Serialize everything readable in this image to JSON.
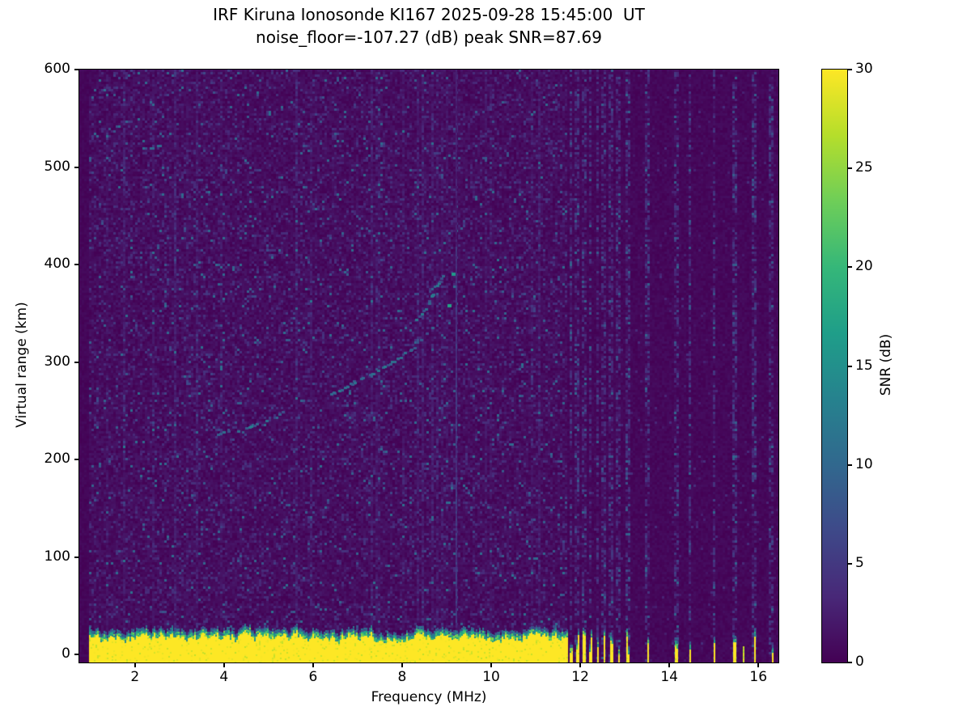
{
  "figure": {
    "background_color": "#ffffff",
    "axis_color": "#000000"
  },
  "chart_data": {
    "type": "heatmap",
    "title": "IRF Kiruna Ionosonde KI167 2025-09-28 15:45:00  UT",
    "subtitle": "noise_floor=-107.27 (dB) peak SNR=87.69",
    "xlabel": "Frequency (MHz)",
    "ylabel": "Virtual range (km)",
    "xlim": [
      0.75,
      16.45
    ],
    "ylim": [
      -8,
      600
    ],
    "xticks": [
      2,
      4,
      6,
      8,
      10,
      12,
      14,
      16
    ],
    "yticks": [
      0,
      100,
      200,
      300,
      400,
      500,
      600
    ],
    "grid": false,
    "colorbar": {
      "label": "SNR (dB)",
      "min": 0,
      "max": 30,
      "ticks": [
        0,
        5,
        10,
        15,
        20,
        25,
        30
      ],
      "colormap": "viridis",
      "position": "right"
    },
    "colormap_stops": [
      "#440154",
      "#482878",
      "#3e4989",
      "#31688e",
      "#26828e",
      "#1f9e89",
      "#35b779",
      "#6ece58",
      "#b5de2b",
      "#fde725"
    ],
    "features": {
      "noise_floor_db": -107.27,
      "peak_snr_db": 87.69,
      "ground_clutter_band": {
        "y_from_km": -8,
        "y_top_km_range": [
          14,
          36
        ],
        "x_from_mhz": 0.95,
        "x_to_mhz": 11.68,
        "snr_db": 30
      },
      "echo_traces": [
        {
          "name": "lower-oblique-trace",
          "points_mhz_km": [
            [
              3.85,
              227
            ],
            [
              4.2,
              230
            ],
            [
              4.6,
              235
            ],
            [
              5.0,
              242
            ],
            [
              5.3,
              249
            ]
          ]
        },
        {
          "name": "f-layer-trace",
          "points_mhz_km": [
            [
              6.4,
              268
            ],
            [
              6.9,
              280
            ],
            [
              7.4,
              291
            ],
            [
              7.8,
              302
            ],
            [
              8.15,
              313
            ],
            [
              8.45,
              325
            ],
            [
              8.7,
              338
            ]
          ]
        },
        {
          "name": "f-layer-cusp",
          "points_mhz_km": [
            [
              8.3,
              345
            ],
            [
              8.5,
              355
            ],
            [
              8.65,
              368
            ],
            [
              8.8,
              382
            ],
            [
              8.9,
              392
            ]
          ]
        }
      ],
      "bright_spots_mhz_km": [
        [
          9.05,
          358
        ],
        [
          9.15,
          390
        ]
      ],
      "vertical_interference_mhz": 9.2,
      "interference_quiet_start_mhz": 11.7,
      "rfi_stripe_freqs_mhz": [
        11.78,
        11.92,
        12.08,
        12.22,
        12.38,
        12.52,
        12.68,
        12.85,
        13.05,
        13.5,
        14.15,
        14.45,
        15.0,
        15.45,
        15.9,
        16.3
      ]
    }
  }
}
